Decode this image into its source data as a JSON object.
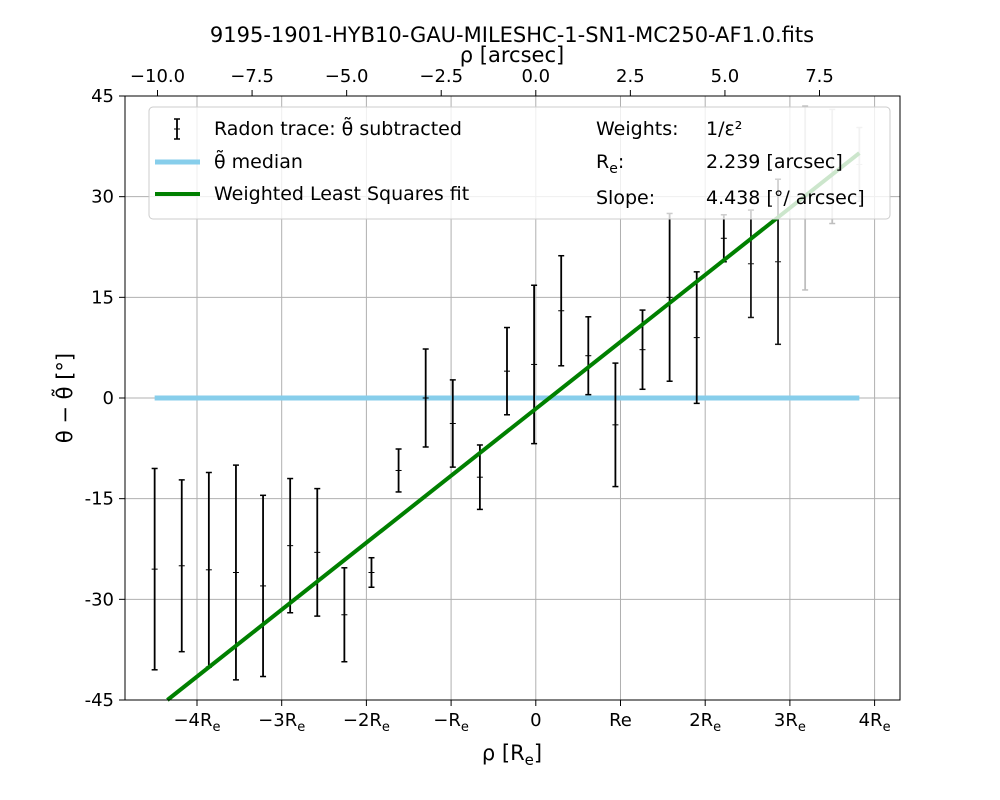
{
  "chart_data": {
    "type": "scatter",
    "title": "9195-1901-HYB10-GAU-MILESHC-1-SN1-MC250-AF1.0.fits",
    "xlabel": "ρ [R_e]",
    "xlabel_top": "ρ [arcsec]",
    "ylabel": "θ − θ̃ [°]",
    "xlim": [
      -4.85,
      4.3
    ],
    "ylim": [
      -45,
      45
    ],
    "grid": true,
    "legend_placement": "top",
    "x_ticks": [
      {
        "v": -4,
        "label": "−4R_e"
      },
      {
        "v": -3,
        "label": "−3R_e"
      },
      {
        "v": -2,
        "label": "−2R_e"
      },
      {
        "v": -1,
        "label": "−R_e"
      },
      {
        "v": 0,
        "label": "0"
      },
      {
        "v": 1,
        "label": "Re"
      },
      {
        "v": 2,
        "label": "2R_e"
      },
      {
        "v": 3,
        "label": "3R_e"
      },
      {
        "v": 4,
        "label": "4R_e"
      }
    ],
    "x_ticks_top": [
      {
        "v": -10.0,
        "label": "−10.0"
      },
      {
        "v": -7.5,
        "label": "−7.5"
      },
      {
        "v": -5.0,
        "label": "−5.0"
      },
      {
        "v": -2.5,
        "label": "−2.5"
      },
      {
        "v": 0.0,
        "label": "0.0"
      },
      {
        "v": 2.5,
        "label": "2.5"
      },
      {
        "v": 5.0,
        "label": "5.0"
      },
      {
        "v": 7.5,
        "label": "7.5"
      }
    ],
    "y_ticks": [
      {
        "v": -45,
        "label": "-45"
      },
      {
        "v": -30,
        "label": "-30"
      },
      {
        "v": -15,
        "label": "-15"
      },
      {
        "v": 0,
        "label": "0"
      },
      {
        "v": 15,
        "label": "15"
      },
      {
        "v": 30,
        "label": "30"
      },
      {
        "v": 45,
        "label": "45"
      }
    ],
    "series": [
      {
        "name": "Radon trace: θ̃ subtracted",
        "kind": "errorbar",
        "color": "#000000",
        "points": [
          {
            "x": -4.5,
            "y": -25.5,
            "err": 15.0
          },
          {
            "x": -4.18,
            "y": -25.0,
            "err": 12.8
          },
          {
            "x": -3.86,
            "y": -25.6,
            "err": 14.5
          },
          {
            "x": -3.54,
            "y": -26.0,
            "err": 16.0
          },
          {
            "x": -3.22,
            "y": -28.0,
            "err": 13.5
          },
          {
            "x": -2.9,
            "y": -22.0,
            "err": 10.0
          },
          {
            "x": -2.58,
            "y": -23.0,
            "err": 9.5
          },
          {
            "x": -2.26,
            "y": -32.3,
            "err": 7.0
          },
          {
            "x": -1.94,
            "y": -26.0,
            "err": 2.2
          },
          {
            "x": -1.62,
            "y": -10.8,
            "err": 3.2
          },
          {
            "x": -1.3,
            "y": 0.0,
            "err": 7.3
          },
          {
            "x": -0.98,
            "y": -3.8,
            "err": 6.5
          },
          {
            "x": -0.66,
            "y": -11.8,
            "err": 4.8
          },
          {
            "x": -0.34,
            "y": 4.0,
            "err": 6.5
          },
          {
            "x": -0.02,
            "y": 5.0,
            "err": 11.8
          },
          {
            "x": 0.3,
            "y": 13.0,
            "err": 8.2
          },
          {
            "x": 0.62,
            "y": 6.3,
            "err": 5.8
          },
          {
            "x": 0.94,
            "y": -4.0,
            "err": 9.2
          },
          {
            "x": 1.26,
            "y": 7.2,
            "err": 5.9
          },
          {
            "x": 1.58,
            "y": 15.0,
            "err": 12.5
          },
          {
            "x": 1.9,
            "y": 9.0,
            "err": 9.8
          },
          {
            "x": 2.22,
            "y": 23.8,
            "err": 3.5
          },
          {
            "x": 2.54,
            "y": 20.0,
            "err": 8.0
          },
          {
            "x": 2.86,
            "y": 20.3,
            "err": 12.3
          },
          {
            "x": 3.18,
            "y": 29.8,
            "err": 13.7
          },
          {
            "x": 3.5,
            "y": 34.5,
            "err": 8.5
          },
          {
            "x": 3.82,
            "y": 34.8,
            "err": 5.5
          }
        ]
      },
      {
        "name": "θ̃ median",
        "kind": "line",
        "color": "#87ceeb",
        "x": [
          -4.5,
          3.82
        ],
        "y": [
          0,
          0
        ]
      },
      {
        "name": "Weighted Least Squares fit",
        "kind": "line",
        "color": "#008000",
        "x": [
          -4.5,
          3.82
        ],
        "y": [
          -46.5,
          36.5
        ]
      }
    ],
    "annotations": {
      "weights_label": "Weights:",
      "weights_value": "1/ε²",
      "re_label": "R_e:",
      "re_value": "2.239 [arcsec]",
      "slope_label": "Slope:",
      "slope_value": "4.438 [°/ arcsec]"
    }
  }
}
